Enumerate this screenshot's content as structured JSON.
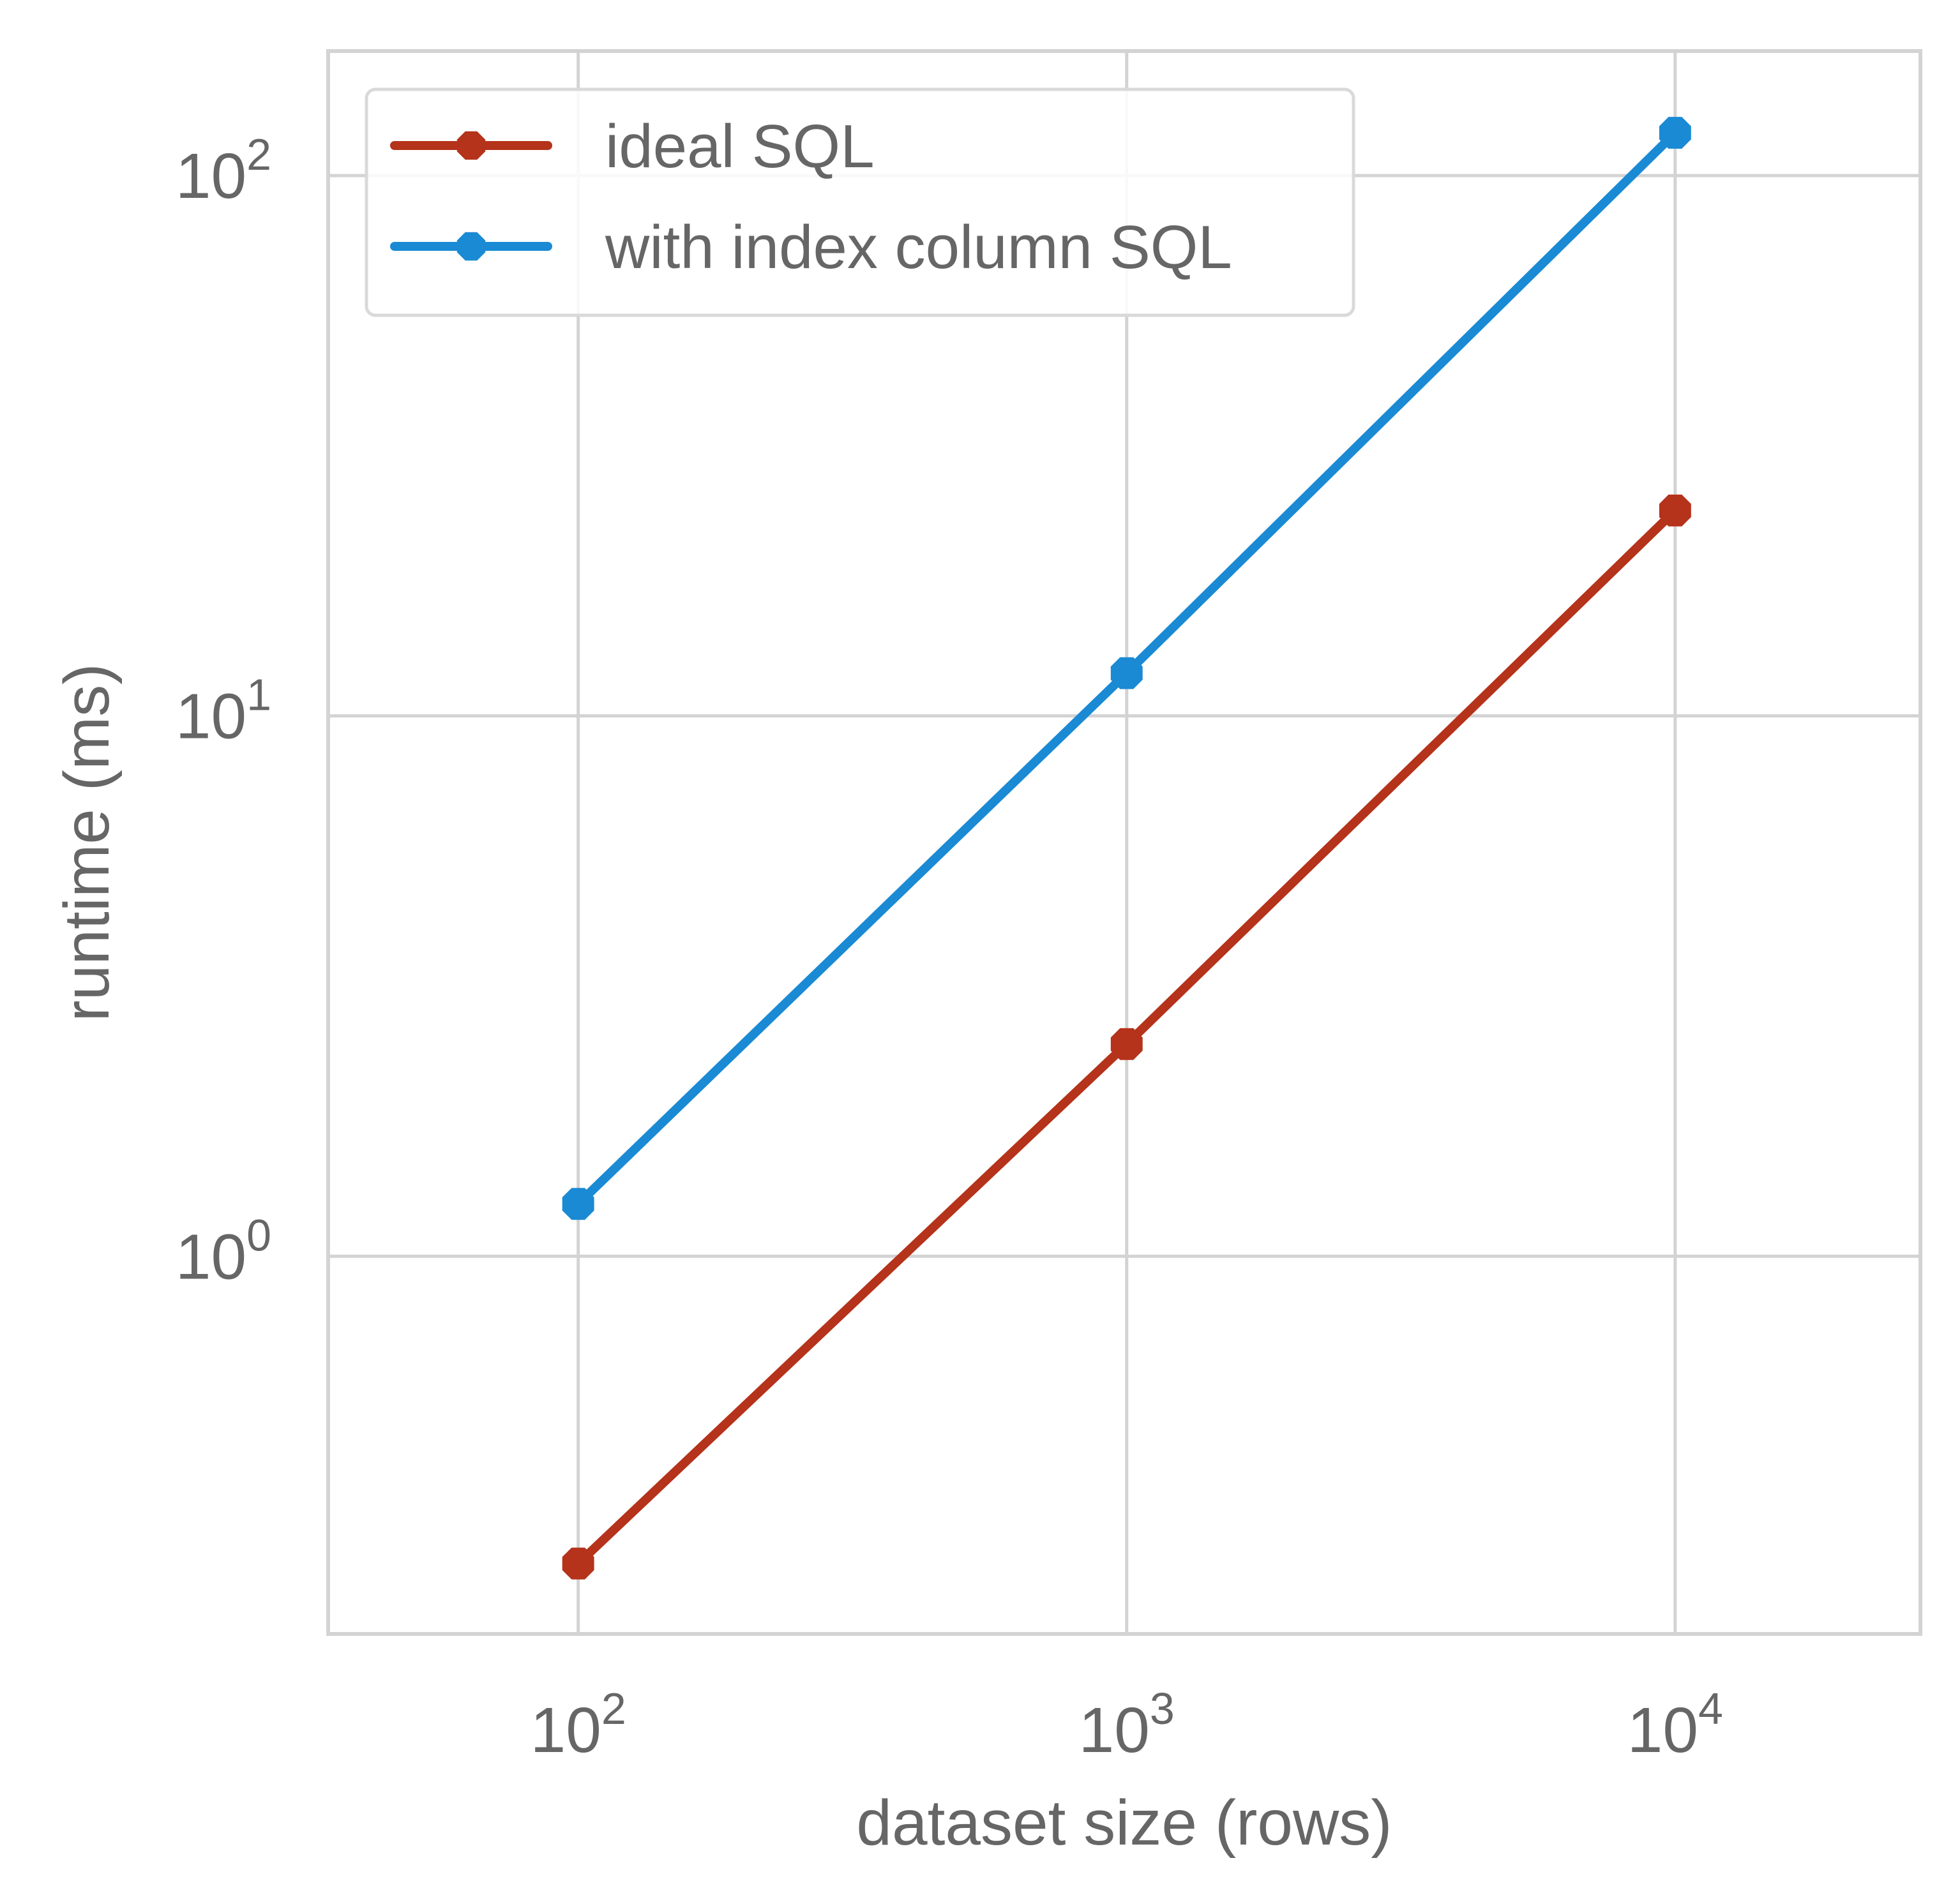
{
  "chart_data": {
    "type": "line",
    "xlabel": "dataset size (rows)",
    "ylabel": "runtime (ms)",
    "x_scale": "log",
    "y_scale": "log",
    "xlim": [
      35,
      28000
    ],
    "ylim": [
      0.2,
      170
    ],
    "grid": true,
    "legend_position": "top-left",
    "x_ticks": [
      {
        "base": "10",
        "exp": "2",
        "value": 100
      },
      {
        "base": "10",
        "exp": "3",
        "value": 1000
      },
      {
        "base": "10",
        "exp": "4",
        "value": 10000
      }
    ],
    "y_ticks": [
      {
        "base": "10",
        "exp": "0",
        "value": 1
      },
      {
        "base": "10",
        "exp": "1",
        "value": 10
      },
      {
        "base": "10",
        "exp": "2",
        "value": 100
      }
    ],
    "x": [
      100,
      1000,
      10000
    ],
    "series": [
      {
        "name": "ideal SQL",
        "color": "#b5321b",
        "values": [
          0.27,
          2.47,
          24.0
        ]
      },
      {
        "name": "with index column SQL",
        "color": "#1a8ad4",
        "values": [
          1.25,
          12.0,
          120.0
        ]
      }
    ]
  },
  "colors": {
    "grid": "#d3d3d3",
    "frame": "#d3d3d3",
    "text": "#666666",
    "legend_border": "#d9d9d9"
  }
}
